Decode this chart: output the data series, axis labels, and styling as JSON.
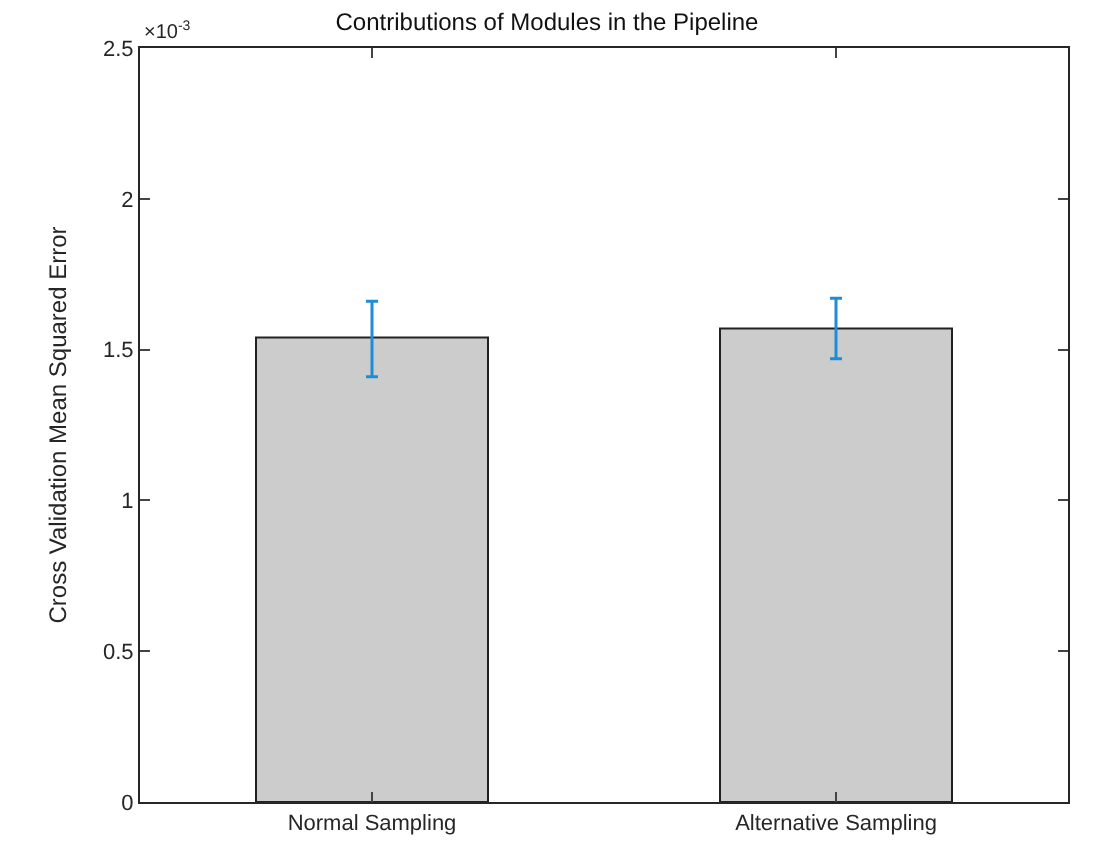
{
  "chart_data": {
    "type": "bar",
    "title": "Contributions of Modules in the Pipeline",
    "ylabel": "Cross Validation Mean Squared Error",
    "categories": [
      "Normal Sampling",
      "Alternative Sampling"
    ],
    "series": [
      {
        "color": "#cccccc",
        "values": [
          1.54,
          1.57
        ],
        "errors": [
          [
            1.41,
            1.66
          ],
          [
            1.47,
            1.67
          ]
        ]
      }
    ],
    "ylim": [
      0,
      2.5
    ],
    "yticks": [
      0,
      0.5,
      1,
      1.5,
      2,
      2.5
    ],
    "annotations": [
      "×10$^{-3}$"
    ]
  }
}
